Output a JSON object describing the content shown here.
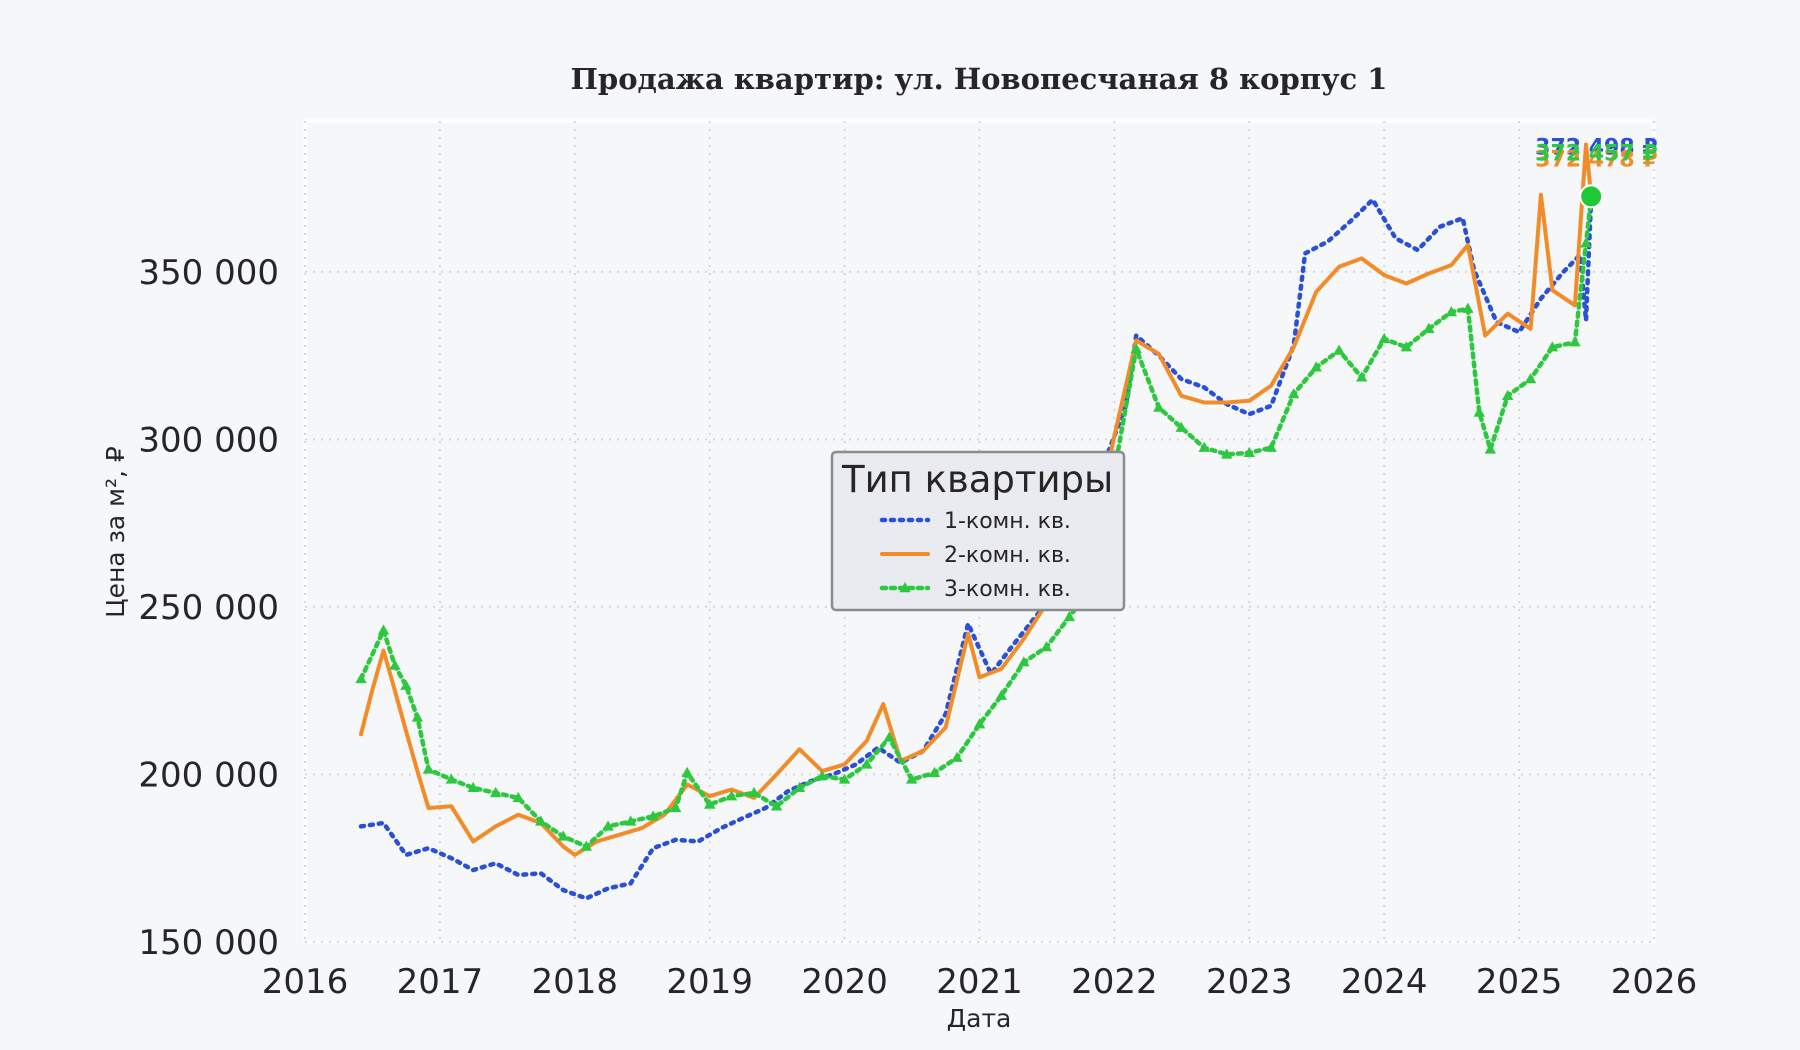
{
  "chart_data": {
    "type": "line",
    "title": "Продажа квартир: ул. Новопесчаная 8 корпус 1",
    "xlabel": "Дата",
    "ylabel": "Цена за м², ₽",
    "xlim": [
      "2016-01-01",
      "2026-01-01"
    ],
    "ylim": [
      150000,
      395000
    ],
    "x_ticks": [
      "2016",
      "2017",
      "2018",
      "2019",
      "2020",
      "2021",
      "2022",
      "2023",
      "2024",
      "2025",
      "2026"
    ],
    "y_ticks": [
      {
        "value": 150000,
        "label": "150 000"
      },
      {
        "value": 200000,
        "label": "200 000"
      },
      {
        "value": 250000,
        "label": "250 000"
      },
      {
        "value": 300000,
        "label": "300 000"
      },
      {
        "value": 350000,
        "label": "350 000"
      }
    ],
    "grid": true,
    "legend": {
      "title": "Тип квартиры",
      "position": "center"
    },
    "series": [
      {
        "name": "1-комн. кв.",
        "color": "#2b50d8",
        "style": "dotted",
        "end_label": "372 498 ₽",
        "points": [
          [
            "2016-06-01",
            184500
          ],
          [
            "2016-08-01",
            185500
          ],
          [
            "2016-10-01",
            176000
          ],
          [
            "2016-12-01",
            178000
          ],
          [
            "2017-02-01",
            175000
          ],
          [
            "2017-04-01",
            171500
          ],
          [
            "2017-06-01",
            173500
          ],
          [
            "2017-08-01",
            170000
          ],
          [
            "2017-10-01",
            170500
          ],
          [
            "2017-12-01",
            165500
          ],
          [
            "2018-02-01",
            163000
          ],
          [
            "2018-04-01",
            166000
          ],
          [
            "2018-06-01",
            167500
          ],
          [
            "2018-08-01",
            178000
          ],
          [
            "2018-10-01",
            180500
          ],
          [
            "2018-12-01",
            180000
          ],
          [
            "2019-02-01",
            184000
          ],
          [
            "2019-04-01",
            187000
          ],
          [
            "2019-06-01",
            190000
          ],
          [
            "2019-08-01",
            195000
          ],
          [
            "2019-10-01",
            198000
          ],
          [
            "2019-12-01",
            200000
          ],
          [
            "2020-02-01",
            203000
          ],
          [
            "2020-04-01",
            208000
          ],
          [
            "2020-06-01",
            203500
          ],
          [
            "2020-08-01",
            207000
          ],
          [
            "2020-10-01",
            218000
          ],
          [
            "2020-12-01",
            245000
          ],
          [
            "2021-02-01",
            230000
          ],
          [
            "2021-04-01",
            238500
          ],
          [
            "2021-06-01",
            247000
          ],
          [
            "2021-08-01",
            255000
          ],
          [
            "2021-10-01",
            268000
          ],
          [
            "2021-12-01",
            292000
          ],
          [
            "2022-02-01",
            310000
          ],
          [
            "2022-03-01",
            331000
          ],
          [
            "2022-05-01",
            325000
          ],
          [
            "2022-07-01",
            318000
          ],
          [
            "2022-09-01",
            315500
          ],
          [
            "2022-11-01",
            310500
          ],
          [
            "2023-01-01",
            307500
          ],
          [
            "2023-03-01",
            310000
          ],
          [
            "2023-05-01",
            328000
          ],
          [
            "2023-06-01",
            355500
          ],
          [
            "2023-08-01",
            359000
          ],
          [
            "2023-10-01",
            365000
          ],
          [
            "2023-12-01",
            371500
          ],
          [
            "2024-02-01",
            360000
          ],
          [
            "2024-04-01",
            356500
          ],
          [
            "2024-06-01",
            363500
          ],
          [
            "2024-08-01",
            366000
          ],
          [
            "2024-09-01",
            350500
          ],
          [
            "2024-11-01",
            335000
          ],
          [
            "2025-01-01",
            332000
          ],
          [
            "2025-03-01",
            342000
          ],
          [
            "2025-05-01",
            350000
          ],
          [
            "2025-06-15",
            355000
          ],
          [
            "2025-07-01",
            335500
          ],
          [
            "2025-07-15",
            372498
          ]
        ]
      },
      {
        "name": "2-комн. кв.",
        "color": "#f28c28",
        "style": "solid",
        "end_label": "372 478 ₽",
        "points": [
          [
            "2016-06-01",
            212000
          ],
          [
            "2016-07-01",
            225000
          ],
          [
            "2016-08-01",
            237000
          ],
          [
            "2016-09-01",
            225000
          ],
          [
            "2016-10-01",
            213000
          ],
          [
            "2016-11-01",
            201000
          ],
          [
            "2016-12-01",
            190000
          ],
          [
            "2017-02-01",
            190500
          ],
          [
            "2017-04-01",
            180000
          ],
          [
            "2017-06-01",
            184500
          ],
          [
            "2017-08-01",
            188000
          ],
          [
            "2017-10-01",
            185500
          ],
          [
            "2017-12-01",
            178500
          ],
          [
            "2018-01-01",
            176000
          ],
          [
            "2018-03-01",
            180000
          ],
          [
            "2018-05-01",
            182000
          ],
          [
            "2018-07-01",
            184000
          ],
          [
            "2018-09-01",
            188000
          ],
          [
            "2018-11-01",
            197000
          ],
          [
            "2019-01-01",
            193500
          ],
          [
            "2019-03-01",
            195500
          ],
          [
            "2019-05-01",
            193000
          ],
          [
            "2019-07-01",
            200000
          ],
          [
            "2019-09-01",
            207500
          ],
          [
            "2019-11-01",
            201000
          ],
          [
            "2020-01-01",
            203000
          ],
          [
            "2020-03-01",
            210000
          ],
          [
            "2020-04-15",
            221000
          ],
          [
            "2020-06-01",
            204000
          ],
          [
            "2020-08-01",
            207000
          ],
          [
            "2020-10-01",
            214000
          ],
          [
            "2020-12-01",
            242000
          ],
          [
            "2021-01-01",
            229000
          ],
          [
            "2021-03-01",
            231500
          ],
          [
            "2021-05-01",
            240500
          ],
          [
            "2021-07-01",
            251000
          ],
          [
            "2021-09-01",
            260500
          ],
          [
            "2021-11-01",
            270000
          ],
          [
            "2022-01-01",
            301000
          ],
          [
            "2022-03-01",
            329500
          ],
          [
            "2022-05-01",
            325500
          ],
          [
            "2022-07-01",
            313000
          ],
          [
            "2022-09-01",
            311000
          ],
          [
            "2022-11-01",
            311000
          ],
          [
            "2023-01-01",
            311500
          ],
          [
            "2023-03-01",
            316000
          ],
          [
            "2023-05-01",
            327500
          ],
          [
            "2023-07-01",
            344000
          ],
          [
            "2023-09-01",
            351500
          ],
          [
            "2023-11-01",
            354000
          ],
          [
            "2024-01-01",
            349000
          ],
          [
            "2024-03-01",
            346500
          ],
          [
            "2024-05-01",
            349500
          ],
          [
            "2024-07-01",
            352000
          ],
          [
            "2024-08-15",
            358000
          ],
          [
            "2024-10-01",
            331000
          ],
          [
            "2024-12-01",
            337500
          ],
          [
            "2025-02-01",
            333000
          ],
          [
            "2025-03-01",
            373000
          ],
          [
            "2025-04-01",
            344500
          ],
          [
            "2025-06-01",
            340000
          ],
          [
            "2025-07-01",
            388000
          ],
          [
            "2025-07-15",
            372478
          ]
        ]
      },
      {
        "name": "3-комн. кв.",
        "color": "#2ec840",
        "style": "dotted-triangle",
        "end_label": "372 457 ₽",
        "points": [
          [
            "2016-06-01",
            228500
          ],
          [
            "2016-08-01",
            243000
          ],
          [
            "2016-09-01",
            232500
          ],
          [
            "2016-10-01",
            226500
          ],
          [
            "2016-11-01",
            217000
          ],
          [
            "2016-12-01",
            201500
          ],
          [
            "2017-02-01",
            198500
          ],
          [
            "2017-04-01",
            196000
          ],
          [
            "2017-06-01",
            194500
          ],
          [
            "2017-08-01",
            193000
          ],
          [
            "2017-10-01",
            186000
          ],
          [
            "2017-12-01",
            181500
          ],
          [
            "2018-02-01",
            178500
          ],
          [
            "2018-04-01",
            184500
          ],
          [
            "2018-06-01",
            186000
          ],
          [
            "2018-08-01",
            187500
          ],
          [
            "2018-10-01",
            190000
          ],
          [
            "2018-11-01",
            200500
          ],
          [
            "2019-01-01",
            191000
          ],
          [
            "2019-03-01",
            193500
          ],
          [
            "2019-05-01",
            194500
          ],
          [
            "2019-07-01",
            190500
          ],
          [
            "2019-09-01",
            196000
          ],
          [
            "2019-11-01",
            199500
          ],
          [
            "2020-01-01",
            198500
          ],
          [
            "2020-03-01",
            203000
          ],
          [
            "2020-05-01",
            211000
          ],
          [
            "2020-07-01",
            198500
          ],
          [
            "2020-09-01",
            200500
          ],
          [
            "2020-11-01",
            205000
          ],
          [
            "2021-01-01",
            215000
          ],
          [
            "2021-03-01",
            223500
          ],
          [
            "2021-05-01",
            233500
          ],
          [
            "2021-07-01",
            238000
          ],
          [
            "2021-09-01",
            247000
          ],
          [
            "2021-11-01",
            256000
          ],
          [
            "2022-01-01",
            290500
          ],
          [
            "2022-03-01",
            327000
          ],
          [
            "2022-05-01",
            309500
          ],
          [
            "2022-07-01",
            303500
          ],
          [
            "2022-09-01",
            297500
          ],
          [
            "2022-11-01",
            295500
          ],
          [
            "2023-01-01",
            296000
          ],
          [
            "2023-03-01",
            297500
          ],
          [
            "2023-05-01",
            313500
          ],
          [
            "2023-07-01",
            321500
          ],
          [
            "2023-09-01",
            326500
          ],
          [
            "2023-11-01",
            318500
          ],
          [
            "2024-01-01",
            330000
          ],
          [
            "2024-03-01",
            327500
          ],
          [
            "2024-05-01",
            333000
          ],
          [
            "2024-07-01",
            338000
          ],
          [
            "2024-08-15",
            339000
          ],
          [
            "2024-09-15",
            308000
          ],
          [
            "2024-10-15",
            297000
          ],
          [
            "2024-12-01",
            313000
          ],
          [
            "2025-02-01",
            318000
          ],
          [
            "2025-04-01",
            327500
          ],
          [
            "2025-06-01",
            329000
          ],
          [
            "2025-07-01",
            358500
          ],
          [
            "2025-07-15",
            372457
          ]
        ]
      }
    ],
    "highlight_point": {
      "x": "2025-07-15",
      "y": 372498,
      "color": "#1ec837"
    }
  }
}
